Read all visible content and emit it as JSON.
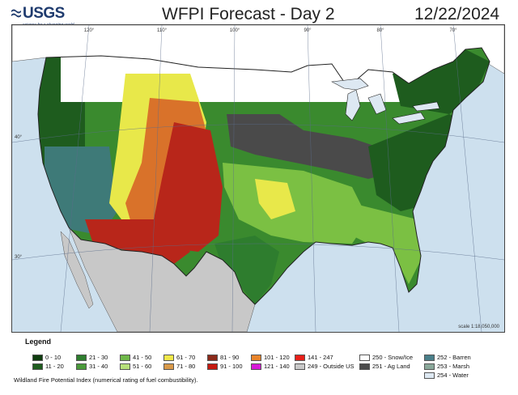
{
  "header": {
    "logo_text": "USGS",
    "logo_tagline": "science for a changing world",
    "title": "WFPI Forecast - Day 2",
    "date": "12/22/2024"
  },
  "map": {
    "longitude_ticks": [
      "120°",
      "110°",
      "100°",
      "90°",
      "80°",
      "70°"
    ],
    "latitude_ticks": [
      "40°",
      "30°"
    ],
    "scale_text": "scale 1:18,050,000",
    "colors": {
      "ocean": "#cde0ee",
      "outside_us": "#c8c8c8",
      "snow": "#ffffff",
      "ag_land": "#4a4a4a",
      "forest": "#1e5c1e",
      "green": "#3a8a2e",
      "light_green": "#7bc043",
      "yellow": "#e8e84a",
      "orange": "#d9722a",
      "red": "#b8261a",
      "barren": "#3e7a78",
      "water": "#dde8f2"
    }
  },
  "legend": {
    "title": "Legend",
    "entries": [
      {
        "label": "0 - 10",
        "color": "#0f3d0f"
      },
      {
        "label": "11 - 20",
        "color": "#1e5c1e"
      },
      {
        "label": "21 - 30",
        "color": "#2e7d2e"
      },
      {
        "label": "31 - 40",
        "color": "#4a9a3a"
      },
      {
        "label": "41 - 50",
        "color": "#6fb84a"
      },
      {
        "label": "51 - 60",
        "color": "#b7e07a"
      },
      {
        "label": "61 - 70",
        "color": "#f0e84a"
      },
      {
        "label": "71 - 80",
        "color": "#d99a4a"
      },
      {
        "label": "81 - 90",
        "color": "#8b2a1a"
      },
      {
        "label": "91 - 100",
        "color": "#c41a10"
      },
      {
        "label": "101 - 120",
        "color": "#e8842a"
      },
      {
        "label": "121 - 140",
        "color": "#d81ad8"
      },
      {
        "label": "141 - 247",
        "color": "#e8201a"
      },
      {
        "label": "249 - Outside US",
        "color": "#c8c8c8"
      },
      {
        "label": "250 - Snow/Ice",
        "color": "#ffffff"
      },
      {
        "label": "251 - Ag Land",
        "color": "#4a4a4a"
      },
      {
        "label": "252 - Barren",
        "color": "#4a7f8a"
      },
      {
        "label": "253 - Marsh",
        "color": "#8aa89a"
      },
      {
        "label": "254 - Water",
        "color": "#dde8f2"
      }
    ],
    "footnote": "Wildland Fire Potential Index (numerical rating of fuel combustibility)."
  }
}
